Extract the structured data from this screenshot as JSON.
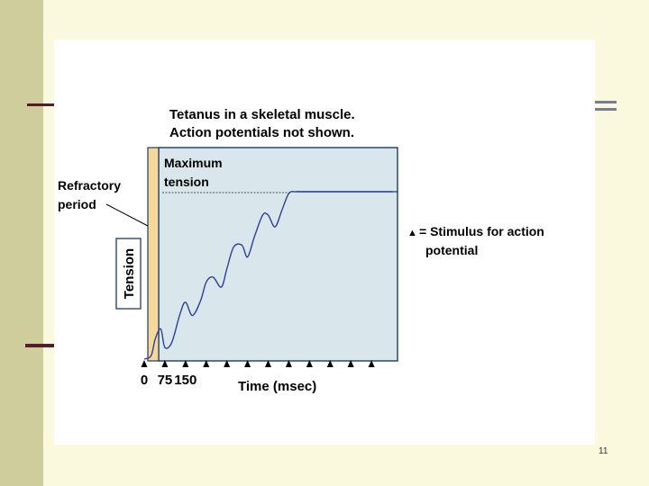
{
  "slide": {
    "page_number": "11"
  },
  "figure": {
    "title_line1": "Tetanus in a skeletal muscle.",
    "title_line2": "Action potentials not shown.",
    "max_tension_line1": "Maximum",
    "max_tension_line2": "tension",
    "refractory_line1": "Refractory",
    "refractory_line2": "period",
    "tension_label": "Tension",
    "legend_symbol": "▲",
    "legend_line1": "= Stimulus for action",
    "legend_line2": "potential",
    "time_label": "Time (msec)"
  },
  "chart_data": {
    "type": "line",
    "title": "Tetanus in a skeletal muscle. Action potentials not shown.",
    "xlabel": "Time (msec)",
    "ylabel": "Tension",
    "x_tick_labels": [
      "0",
      "75",
      "150"
    ],
    "stimulus_times_msec": [
      0,
      75,
      150,
      225,
      300,
      375,
      450,
      525,
      600,
      675,
      750,
      825
    ],
    "xlim": [
      0,
      900
    ],
    "ylim": [
      0,
      1
    ],
    "series": [
      {
        "name": "Tension",
        "x": [
          0,
          25,
          40,
          60,
          75,
          100,
          130,
          150,
          175,
          205,
          225,
          250,
          280,
          300,
          325,
          355,
          375,
          400,
          430,
          450,
          475,
          500,
          525,
          550,
          575,
          600,
          900
        ],
        "y": [
          0.0,
          0.02,
          0.12,
          0.18,
          0.07,
          0.1,
          0.27,
          0.34,
          0.26,
          0.35,
          0.46,
          0.49,
          0.43,
          0.54,
          0.67,
          0.68,
          0.61,
          0.73,
          0.86,
          0.86,
          0.79,
          0.89,
          0.99,
          1.0,
          1.0,
          1.0,
          1.0
        ]
      }
    ],
    "maximum_tension": 1.0
  }
}
